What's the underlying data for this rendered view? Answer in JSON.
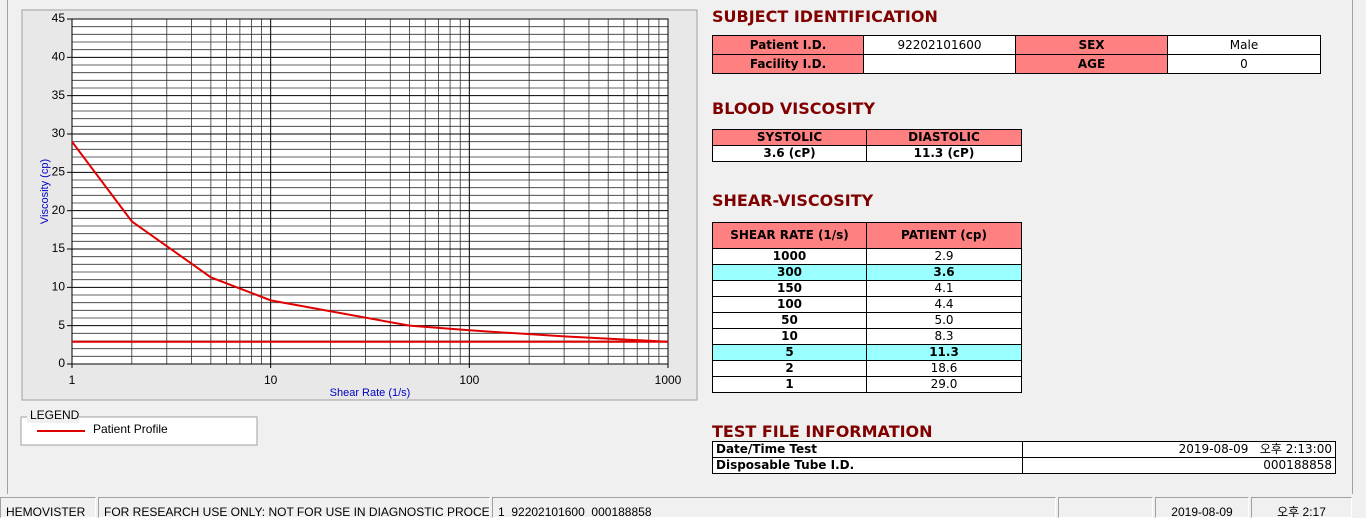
{
  "chart_data": {
    "type": "line",
    "xlabel": "Shear Rate (1/s)",
    "ylabel": "Viscosity (cp)",
    "xlog": true,
    "xlim": [
      1,
      1000
    ],
    "xticks": [
      1,
      10,
      100,
      1000
    ],
    "xminorticks": [
      2,
      3,
      4,
      5,
      6,
      7,
      8,
      9,
      20,
      30,
      40,
      50,
      60,
      70,
      80,
      90,
      200,
      300,
      400,
      500,
      600,
      700,
      800,
      900
    ],
    "ylim": [
      0,
      45
    ],
    "yticks": [
      0,
      5,
      10,
      15,
      20,
      25,
      30,
      35,
      40,
      45
    ],
    "yminorticks": [
      1,
      2,
      3,
      4,
      6,
      7,
      8,
      9,
      11,
      12,
      13,
      14,
      16,
      17,
      18,
      19,
      21,
      22,
      23,
      24,
      26,
      27,
      28,
      29,
      31,
      32,
      33,
      34,
      36,
      37,
      38,
      39,
      41,
      42,
      43,
      44
    ],
    "grid": true,
    "legend_title": "LEGEND",
    "series": [
      {
        "name": "Patient Profile",
        "color": "#e00000",
        "x": [
          1,
          2,
          5,
          10,
          50,
          100,
          150,
          300,
          1000
        ],
        "values": [
          29.0,
          18.6,
          11.3,
          8.3,
          5.0,
          4.4,
          4.1,
          3.6,
          2.9
        ]
      },
      {
        "color": "#e00000",
        "x": [
          1,
          1000
        ],
        "values": [
          2.9,
          2.9
        ]
      }
    ]
  },
  "subject": {
    "title": "SUBJECT IDENTIFICATION",
    "rows": [
      [
        "Patient I.D.",
        "92202101600",
        "SEX",
        "Male"
      ],
      [
        "Facility I.D.",
        null,
        "AGE",
        "0"
      ]
    ]
  },
  "blood": {
    "title": "BLOOD VISCOSITY",
    "header": [
      "SYSTOLIC",
      "DIASTOLIC"
    ],
    "row": [
      "3.6 (cP)",
      "11.3 (cP)"
    ]
  },
  "shear": {
    "title": "SHEAR-VISCOSITY",
    "header": [
      "SHEAR RATE (1/s)",
      "PATIENT (cp)"
    ],
    "highlight": [
      1,
      6
    ],
    "rows": [
      [
        "1000",
        "2.9"
      ],
      [
        "300",
        "3.6"
      ],
      [
        "150",
        "4.1"
      ],
      [
        "100",
        "4.4"
      ],
      [
        "50",
        "5.0"
      ],
      [
        "10",
        "8.3"
      ],
      [
        "5",
        "11.3"
      ],
      [
        "2",
        "18.6"
      ],
      [
        "1",
        "29.0"
      ]
    ]
  },
  "test_file": {
    "title": "TEST FILE INFORMATION",
    "rows": [
      [
        "Date/Time Test",
        "2019-08-09   오후 2:13:00"
      ],
      [
        "Disposable Tube I.D.",
        "000188858"
      ]
    ]
  },
  "status_bar": [
    "HEMOVISTER",
    "FOR RESEARCH USE ONLY: NOT FOR USE IN DIAGNOSTIC PROCEDURES",
    "1  92202101600  000188858",
    "2019-08-09",
    "오후 2:17"
  ]
}
